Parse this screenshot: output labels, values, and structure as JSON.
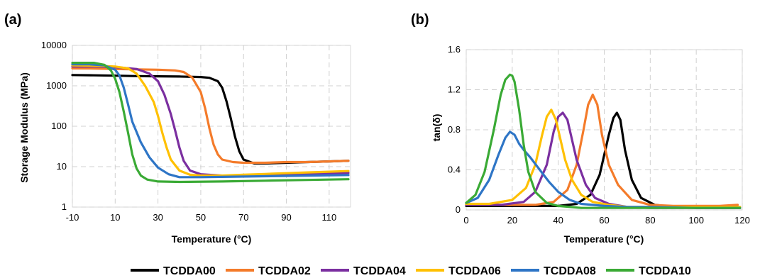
{
  "chart_data": [
    {
      "panel_label": "(a)",
      "type": "line",
      "xlabel": "Temperature (°C)",
      "ylabel": "Storage Modulus (MPa)",
      "xlim": [
        -10,
        120
      ],
      "ylim": [
        1,
        10000
      ],
      "y_scale": "log",
      "x_ticks": [
        -10,
        10,
        30,
        50,
        70,
        90,
        110
      ],
      "y_ticks": [
        1,
        10,
        100,
        1000,
        10000
      ],
      "y_tick_labels": [
        "1",
        "10",
        "100",
        "1000",
        "10000"
      ],
      "grid": true,
      "series": [
        {
          "name": "TCDDA00",
          "color": "#000000",
          "x": [
            -10,
            0,
            10,
            20,
            30,
            40,
            50,
            54,
            58,
            60,
            62,
            64,
            66,
            68,
            70,
            75,
            80,
            90,
            100,
            110,
            119
          ],
          "y": [
            1850,
            1820,
            1780,
            1740,
            1720,
            1700,
            1650,
            1580,
            1300,
            900,
            420,
            160,
            55,
            24,
            15,
            12,
            12,
            12.5,
            13,
            13.5,
            14
          ]
        },
        {
          "name": "TCDDA02",
          "color": "#F47B2A",
          "x": [
            -10,
            0,
            10,
            20,
            30,
            38,
            42,
            46,
            50,
            52,
            54,
            56,
            58,
            60,
            65,
            70,
            80,
            90,
            100,
            110,
            119
          ],
          "y": [
            2700,
            2680,
            2600,
            2550,
            2500,
            2400,
            2200,
            1600,
            700,
            280,
            90,
            35,
            20,
            15,
            13,
            12.5,
            12.5,
            13,
            13,
            13.5,
            14
          ]
        },
        {
          "name": "TCDDA04",
          "color": "#7B2FA0",
          "x": [
            -10,
            0,
            10,
            20,
            26,
            30,
            33,
            36,
            38,
            40,
            42,
            45,
            50,
            60,
            70,
            80,
            90,
            100,
            110,
            119
          ],
          "y": [
            3000,
            3000,
            2900,
            2600,
            2000,
            1300,
            600,
            200,
            80,
            30,
            14,
            8,
            6.5,
            6,
            6,
            6.2,
            6.3,
            6.5,
            6.7,
            7
          ]
        },
        {
          "name": "TCDDA06",
          "color": "#FFC000",
          "x": [
            -10,
            0,
            10,
            16,
            20,
            24,
            28,
            30,
            32,
            34,
            36,
            40,
            45,
            50,
            60,
            70,
            80,
            90,
            100,
            110,
            119
          ],
          "y": [
            3200,
            3150,
            3000,
            2700,
            2000,
            1000,
            400,
            180,
            70,
            30,
            15,
            8,
            6.3,
            6,
            6,
            6.3,
            6.6,
            6.9,
            7.2,
            7.5,
            7.8
          ]
        },
        {
          "name": "TCDDA08",
          "color": "#2E75C6",
          "x": [
            -10,
            -2,
            5,
            10,
            12,
            14,
            16,
            18,
            22,
            26,
            30,
            35,
            40,
            50,
            60,
            80,
            100,
            119
          ],
          "y": [
            3400,
            3400,
            3200,
            2500,
            1800,
            900,
            350,
            130,
            40,
            17,
            9.5,
            6.5,
            5.5,
            5.5,
            5.6,
            5.8,
            6.0,
            6.2
          ]
        },
        {
          "name": "TCDDA10",
          "color": "#3AAA35",
          "x": [
            -10,
            0,
            5,
            8,
            10,
            12,
            14,
            16,
            18,
            20,
            22,
            25,
            30,
            40,
            60,
            80,
            100,
            119
          ],
          "y": [
            3700,
            3700,
            3300,
            2400,
            1500,
            700,
            230,
            70,
            20,
            9,
            6,
            4.8,
            4.3,
            4.2,
            4.3,
            4.5,
            4.7,
            4.9
          ]
        }
      ]
    },
    {
      "panel_label": "(b)",
      "type": "line",
      "xlabel": "Temperature (°C)",
      "ylabel": "tan(δ)",
      "xlim": [
        0,
        120
      ],
      "ylim": [
        0,
        1.6
      ],
      "x_ticks": [
        0,
        20,
        40,
        60,
        80,
        100,
        120
      ],
      "y_ticks": [
        0,
        0.4,
        0.8,
        1.2,
        1.6
      ],
      "y_tick_labels": [
        "0",
        "0.4",
        "0.8",
        "1.2",
        "1.6"
      ],
      "grid": true,
      "series": [
        {
          "name": "TCDDA00",
          "color": "#000000",
          "x": [
            0,
            20,
            40,
            48,
            54,
            58,
            62,
            64,
            65.5,
            67,
            69,
            72,
            76,
            82,
            90,
            100,
            110,
            119
          ],
          "y": [
            0.04,
            0.04,
            0.04,
            0.06,
            0.15,
            0.35,
            0.75,
            0.92,
            0.97,
            0.9,
            0.6,
            0.3,
            0.12,
            0.05,
            0.03,
            0.02,
            0.02,
            0.02
          ]
        },
        {
          "name": "TCDDA02",
          "color": "#F47B2A",
          "x": [
            0,
            20,
            30,
            38,
            44,
            48,
            51,
            53,
            55,
            57,
            59,
            62,
            66,
            72,
            80,
            90,
            100,
            110,
            118
          ],
          "y": [
            0.05,
            0.05,
            0.05,
            0.08,
            0.2,
            0.45,
            0.8,
            1.05,
            1.15,
            1.05,
            0.75,
            0.45,
            0.25,
            0.1,
            0.05,
            0.04,
            0.04,
            0.04,
            0.05
          ]
        },
        {
          "name": "TCDDA04",
          "color": "#7B2FA0",
          "x": [
            0,
            15,
            25,
            30,
            35,
            38,
            40,
            42,
            44,
            46,
            48,
            52,
            56,
            62,
            70,
            80,
            100,
            119
          ],
          "y": [
            0.05,
            0.05,
            0.08,
            0.18,
            0.45,
            0.78,
            0.93,
            0.97,
            0.9,
            0.7,
            0.5,
            0.25,
            0.12,
            0.06,
            0.03,
            0.02,
            0.02,
            0.02
          ]
        },
        {
          "name": "TCDDA06",
          "color": "#FFC000",
          "x": [
            0,
            10,
            20,
            26,
            30,
            33,
            35,
            37,
            39,
            41,
            43,
            46,
            50,
            55,
            62,
            70,
            80,
            100,
            119
          ],
          "y": [
            0.06,
            0.06,
            0.1,
            0.22,
            0.45,
            0.75,
            0.93,
            1.0,
            0.9,
            0.7,
            0.5,
            0.3,
            0.15,
            0.08,
            0.05,
            0.03,
            0.03,
            0.03,
            0.03
          ]
        },
        {
          "name": "TCDDA08",
          "color": "#2E75C6",
          "x": [
            0,
            5,
            10,
            14,
            17,
            19,
            21,
            23,
            25,
            28,
            32,
            36,
            40,
            45,
            50,
            55,
            60,
            70,
            80,
            100,
            119
          ],
          "y": [
            0.07,
            0.12,
            0.3,
            0.55,
            0.72,
            0.78,
            0.75,
            0.66,
            0.6,
            0.52,
            0.4,
            0.28,
            0.18,
            0.1,
            0.06,
            0.05,
            0.04,
            0.03,
            0.03,
            0.02,
            0.02
          ]
        },
        {
          "name": "TCDDA10",
          "color": "#3AAA35",
          "x": [
            0,
            4,
            8,
            12,
            15,
            17,
            19,
            20,
            21,
            23,
            25,
            27,
            30,
            35,
            40,
            50,
            60,
            80,
            100,
            119
          ],
          "y": [
            0.07,
            0.15,
            0.38,
            0.8,
            1.15,
            1.3,
            1.35,
            1.34,
            1.28,
            1.0,
            0.65,
            0.38,
            0.18,
            0.07,
            0.04,
            0.02,
            0.02,
            0.02,
            0.02,
            0.02
          ]
        }
      ]
    }
  ],
  "legend": {
    "placement": "bottom",
    "entries": [
      {
        "name": "TCDDA00",
        "color": "#000000"
      },
      {
        "name": "TCDDA02",
        "color": "#F47B2A"
      },
      {
        "name": "TCDDA04",
        "color": "#7B2FA0"
      },
      {
        "name": "TCDDA06",
        "color": "#FFC000"
      },
      {
        "name": "TCDDA08",
        "color": "#2E75C6"
      },
      {
        "name": "TCDDA10",
        "color": "#3AAA35"
      }
    ]
  }
}
